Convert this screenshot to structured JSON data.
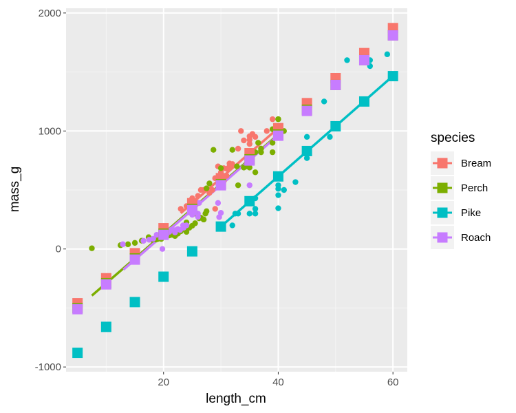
{
  "chart_data": {
    "type": "scatter",
    "xlabel": "length_cm",
    "ylabel": "mass_g",
    "xlim": [
      3,
      62.5
    ],
    "ylim": [
      -1040,
      2040
    ],
    "x_ticks": [
      20,
      40,
      60
    ],
    "y_ticks": [
      -1000,
      0,
      1000,
      2000
    ],
    "x_tick_labels": [
      "20",
      "40",
      "60"
    ],
    "y_tick_labels": [
      "-1000",
      "0",
      "1000",
      "2000"
    ],
    "grid": true,
    "legend": {
      "title": "species",
      "position": "right"
    },
    "series": [
      {
        "name": "Bream",
        "color": "#F8766D",
        "points": [
          [
            23,
            340
          ],
          [
            24,
            363
          ],
          [
            25,
            390
          ],
          [
            25,
            430
          ],
          [
            26,
            450
          ],
          [
            26.5,
            500
          ],
          [
            27,
            500
          ],
          [
            28,
            475
          ],
          [
            28.5,
            500
          ],
          [
            29,
            600
          ],
          [
            29,
            600
          ],
          [
            29.5,
            700
          ],
          [
            30,
            610
          ],
          [
            30,
            650
          ],
          [
            30.5,
            575
          ],
          [
            30.5,
            685
          ],
          [
            31,
            620
          ],
          [
            31,
            680
          ],
          [
            31.5,
            700
          ],
          [
            31.5,
            725
          ],
          [
            32,
            720
          ],
          [
            32,
            714
          ],
          [
            33,
            850
          ],
          [
            33.5,
            1000
          ],
          [
            34,
            920
          ],
          [
            35,
            955
          ],
          [
            35,
            925
          ],
          [
            35.5,
            975
          ],
          [
            36,
            950
          ],
          [
            37,
            850
          ],
          [
            38,
            1000
          ],
          [
            39,
            1100
          ],
          [
            40,
            1000
          ],
          [
            40,
            950
          ],
          [
            35,
            890
          ],
          [
            29,
            340
          ],
          [
            26,
            390
          ]
        ],
        "fit_x": [
          23,
          40
        ],
        "predicted": [
          [
            5,
            -460
          ],
          [
            10,
            -248
          ],
          [
            15,
            -36
          ],
          [
            20,
            176
          ],
          [
            25,
            388
          ],
          [
            30,
            600
          ],
          [
            35,
            812
          ],
          [
            40,
            1024
          ],
          [
            45,
            1236
          ],
          [
            50,
            1448
          ],
          [
            55,
            1660
          ],
          [
            60,
            1872
          ]
        ]
      },
      {
        "name": "Perch",
        "color": "#7CAE00",
        "points": [
          [
            7.5,
            5.9
          ],
          [
            12.5,
            32
          ],
          [
            13.8,
            40
          ],
          [
            15,
            51.5
          ],
          [
            16.2,
            70
          ],
          [
            17.4,
            100
          ],
          [
            18,
            78
          ],
          [
            18.7,
            80
          ],
          [
            19,
            85
          ],
          [
            19.6,
            85
          ],
          [
            20,
            110
          ],
          [
            21,
            115
          ],
          [
            21,
            125
          ],
          [
            21,
            130
          ],
          [
            21.5,
            120
          ],
          [
            22,
            120
          ],
          [
            22,
            130
          ],
          [
            22,
            135
          ],
          [
            22,
            110
          ],
          [
            22.5,
            130
          ],
          [
            22.5,
            150
          ],
          [
            22.7,
            145
          ],
          [
            23,
            150
          ],
          [
            23.5,
            170
          ],
          [
            24,
            225
          ],
          [
            24,
            145
          ],
          [
            24.2,
            188
          ],
          [
            24.5,
            180
          ],
          [
            25,
            197
          ],
          [
            25.5,
            218
          ],
          [
            25.5,
            300
          ],
          [
            26.2,
            260
          ],
          [
            26.5,
            265
          ],
          [
            27,
            250
          ],
          [
            27,
            250
          ],
          [
            27.3,
            300
          ],
          [
            27.5,
            320
          ],
          [
            27.5,
            514
          ],
          [
            28,
            556
          ],
          [
            28.7,
            840
          ],
          [
            30,
            685
          ],
          [
            32.8,
            700
          ],
          [
            34.5,
            700
          ],
          [
            35,
            690
          ],
          [
            36.5,
            900
          ],
          [
            36,
            650
          ],
          [
            37,
            820
          ],
          [
            37,
            850
          ],
          [
            39,
            900
          ],
          [
            39,
            1015
          ],
          [
            39,
            820
          ],
          [
            40,
            1100
          ],
          [
            40,
            1000
          ],
          [
            40,
            1100
          ],
          [
            40.5,
            1000
          ],
          [
            41,
            1000
          ],
          [
            33,
            540
          ],
          [
            32,
            840
          ],
          [
            36,
            820
          ],
          [
            34,
            690
          ]
        ],
        "fit_x": [
          7.5,
          40.5
        ],
        "predicted": [
          [
            5,
            -500
          ],
          [
            10,
            -290
          ],
          [
            15,
            -80
          ],
          [
            20,
            130
          ],
          [
            25,
            340
          ],
          [
            30,
            550
          ],
          [
            35,
            760
          ],
          [
            40,
            970
          ],
          [
            45,
            1180
          ],
          [
            50,
            1390
          ],
          [
            55,
            1600
          ],
          [
            60,
            1810
          ]
        ]
      },
      {
        "name": "Pike",
        "color": "#00BFC4",
        "points": [
          [
            32,
            200
          ],
          [
            32.5,
            300
          ],
          [
            35,
            300
          ],
          [
            36,
            300
          ],
          [
            36,
            430
          ],
          [
            40,
            345
          ],
          [
            40,
            456
          ],
          [
            40,
            510
          ],
          [
            40,
            540
          ],
          [
            41,
            500
          ],
          [
            43,
            567
          ],
          [
            45,
            770
          ],
          [
            45,
            950
          ],
          [
            48,
            1250
          ],
          [
            52,
            1600
          ],
          [
            56,
            1600
          ],
          [
            56,
            1550
          ],
          [
            59,
            1650
          ],
          [
            33,
            300
          ],
          [
            36,
            340
          ],
          [
            45,
            800
          ],
          [
            49,
            950
          ],
          [
            40,
            600
          ]
        ],
        "fit_x": [
          30,
          60
        ],
        "predicted": [
          [
            5,
            -880
          ],
          [
            10,
            -660
          ],
          [
            15,
            -450
          ],
          [
            20,
            -235
          ],
          [
            25,
            -20
          ],
          [
            30,
            190
          ],
          [
            35,
            405
          ],
          [
            40,
            615
          ],
          [
            45,
            830
          ],
          [
            50,
            1040
          ],
          [
            55,
            1250
          ],
          [
            60,
            1465
          ]
        ]
      },
      {
        "name": "Roach",
        "color": "#C77CFF",
        "points": [
          [
            12.9,
            40
          ],
          [
            16.5,
            69
          ],
          [
            17.5,
            78
          ],
          [
            18.2,
            87
          ],
          [
            18.8,
            120
          ],
          [
            19.8,
            0
          ],
          [
            20,
            110
          ],
          [
            20.5,
            120
          ],
          [
            20.8,
            150
          ],
          [
            21,
            145
          ],
          [
            21.2,
            160
          ],
          [
            22,
            140
          ],
          [
            22,
            160
          ],
          [
            22.5,
            169
          ],
          [
            22.9,
            161
          ],
          [
            23.4,
            200
          ],
          [
            23.5,
            180
          ],
          [
            25,
            290
          ],
          [
            26,
            272
          ],
          [
            26.2,
            390
          ],
          [
            29.5,
            390
          ],
          [
            29.7,
            270
          ],
          [
            30,
            306
          ],
          [
            35,
            540
          ],
          [
            24,
            200
          ],
          [
            26,
            300
          ]
        ],
        "fit_x": [
          13,
          40
        ],
        "predicted": [
          [
            5,
            -510
          ],
          [
            10,
            -300
          ],
          [
            15,
            -90
          ],
          [
            20,
            120
          ],
          [
            25,
            330
          ],
          [
            30,
            540
          ],
          [
            35,
            750
          ],
          [
            40,
            960
          ],
          [
            45,
            1170
          ],
          [
            50,
            1390
          ],
          [
            55,
            1600
          ],
          [
            60,
            1810
          ]
        ]
      }
    ]
  }
}
